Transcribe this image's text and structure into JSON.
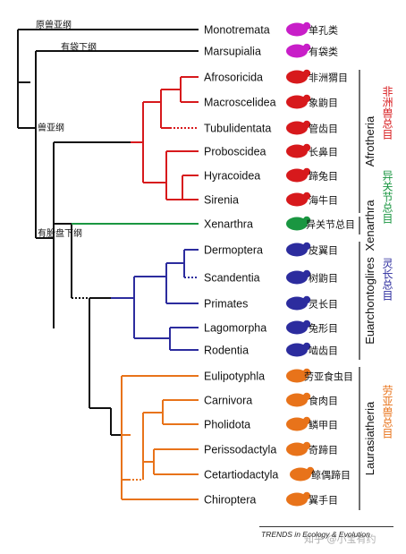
{
  "clade_labels": {
    "root": "原兽亚纲",
    "marsupial": "有袋下纲",
    "eutheria_sub": "兽亚纲",
    "placental": "有胎盘下纲"
  },
  "taxa": [
    {
      "latin": "Monotremata",
      "chinese": "单孔类",
      "group": "monotreme",
      "icon": "platypus-icon"
    },
    {
      "latin": "Marsupialia",
      "chinese": "有袋类",
      "group": "marsupial",
      "icon": "kangaroo-icon"
    },
    {
      "latin": "Afrosoricida",
      "chinese": "非洲猬目",
      "group": "afrotheria",
      "icon": "tenrec-icon"
    },
    {
      "latin": "Macroscelidea",
      "chinese": "象鼩目",
      "group": "afrotheria",
      "icon": "elephant-shrew-icon"
    },
    {
      "latin": "Tubulidentata",
      "chinese": "管齿目",
      "group": "afrotheria",
      "icon": "aardvark-icon"
    },
    {
      "latin": "Proboscidea",
      "chinese": "长鼻目",
      "group": "afrotheria",
      "icon": "elephant-icon"
    },
    {
      "latin": "Hyracoidea",
      "chinese": "蹄兔目",
      "group": "afrotheria",
      "icon": "hyrax-icon"
    },
    {
      "latin": "Sirenia",
      "chinese": "海牛目",
      "group": "afrotheria",
      "icon": "manatee-icon"
    },
    {
      "latin": "Xenarthra",
      "chinese": "异关节总目",
      "group": "xenarthra",
      "icon": "armadillo-icon"
    },
    {
      "latin": "Dermoptera",
      "chinese": "皮翼目",
      "group": "euarchontoglires",
      "icon": "colugo-icon"
    },
    {
      "latin": "Scandentia",
      "chinese": "树鼩目",
      "group": "euarchontoglires",
      "icon": "treeshrew-icon"
    },
    {
      "latin": "Primates",
      "chinese": "灵长目",
      "group": "euarchontoglires",
      "icon": "primate-icon"
    },
    {
      "latin": "Lagomorpha",
      "chinese": "兔形目",
      "group": "euarchontoglires",
      "icon": "rabbit-icon"
    },
    {
      "latin": "Rodentia",
      "chinese": "啮齿目",
      "group": "euarchontoglires",
      "icon": "rodent-icon"
    },
    {
      "latin": "Eulipotyphla",
      "chinese": "劳亚食虫目",
      "group": "laurasiatheria",
      "icon": "shrew-icon"
    },
    {
      "latin": "Carnivora",
      "chinese": "食肉目",
      "group": "laurasiatheria",
      "icon": "cat-icon"
    },
    {
      "latin": "Pholidota",
      "chinese": "鳞甲目",
      "group": "laurasiatheria",
      "icon": "pangolin-icon"
    },
    {
      "latin": "Perissodactyla",
      "chinese": "奇蹄目",
      "group": "laurasiatheria",
      "icon": "horse-icon"
    },
    {
      "latin": "Cetartiodactyla",
      "chinese": "鲸偶蹄目",
      "group": "laurasiatheria",
      "icon": "whale-icon"
    },
    {
      "latin": "Chiroptera",
      "chinese": "翼手目",
      "group": "laurasiatheria",
      "icon": "bat-icon"
    }
  ],
  "superorders": [
    {
      "latin": "Afrotheria",
      "chinese": "非洲兽总目",
      "color": "#d7191c"
    },
    {
      "latin": "Xenarthra",
      "chinese": "异关节总目",
      "color": "#1a9641"
    },
    {
      "latin": "Euarchontoglires",
      "chinese": "灵长总目",
      "color": "#2c2c9e"
    },
    {
      "latin": "Laurasiatheria",
      "chinese": "劳亚兽总目",
      "color": "#e8731a"
    }
  ],
  "colors": {
    "black": "#111111",
    "magenta": "#c81ec8",
    "afrotheria": "#d7191c",
    "xenarthra": "#1a9641",
    "euarchontoglires": "#2c2c9e",
    "laurasiatheria": "#e8731a"
  },
  "footer": {
    "journal": "TRENDS in Ecology & Evolution",
    "watermark": "知乎 @小宝有约"
  }
}
